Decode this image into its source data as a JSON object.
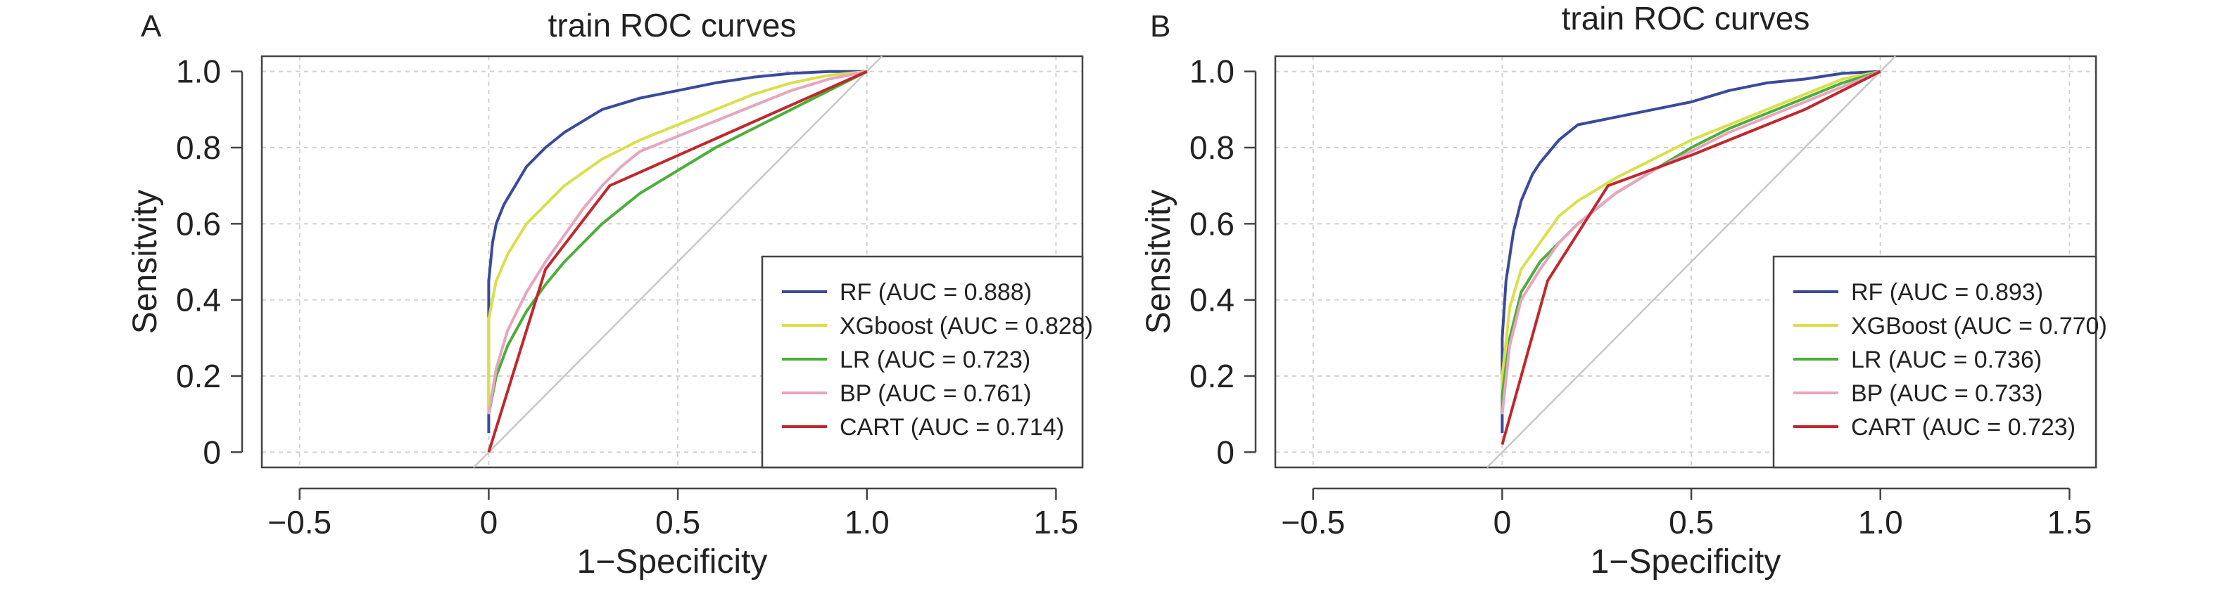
{
  "chart_data": [
    {
      "panel_label": "A",
      "type": "line",
      "title": "train ROC curves",
      "xlabel": "1−Specificity",
      "ylabel": "Sensitvity",
      "xlim": [
        -0.6,
        1.57
      ],
      "ylim": [
        -0.04,
        1.04
      ],
      "x_ticks": [
        "−0.5",
        "0",
        "0.5",
        "1.0",
        "1.5"
      ],
      "x_tick_values": [
        -0.5,
        0,
        0.5,
        1.0,
        1.5
      ],
      "y_ticks": [
        "0",
        "0.2",
        "0.4",
        "0.6",
        "0.8",
        "1.0"
      ],
      "y_tick_values": [
        0,
        0.2,
        0.4,
        0.6,
        0.8,
        1.0
      ],
      "grid": true,
      "legend_position": "bottom-right",
      "series": [
        {
          "name": "RF (AUC = 0.888)",
          "color": "#3a4a9c",
          "x": [
            0,
            0,
            0.01,
            0.02,
            0.04,
            0.07,
            0.1,
            0.15,
            0.2,
            0.25,
            0.3,
            0.4,
            0.5,
            0.6,
            0.7,
            0.8,
            0.9,
            1.0
          ],
          "y": [
            0.05,
            0.45,
            0.55,
            0.6,
            0.65,
            0.7,
            0.75,
            0.8,
            0.84,
            0.87,
            0.9,
            0.93,
            0.95,
            0.97,
            0.985,
            0.995,
            1.0,
            1.0
          ]
        },
        {
          "name": "XGboost (AUC = 0.828)",
          "color": "#d9e04a",
          "x": [
            0,
            0,
            0.02,
            0.05,
            0.1,
            0.15,
            0.2,
            0.3,
            0.4,
            0.5,
            0.6,
            0.7,
            0.8,
            0.9,
            1.0
          ],
          "y": [
            0.1,
            0.35,
            0.45,
            0.52,
            0.6,
            0.65,
            0.7,
            0.77,
            0.82,
            0.86,
            0.9,
            0.94,
            0.97,
            0.99,
            1.0
          ],
          "_note": ""
        },
        {
          "name": "LR (AUC = 0.723)",
          "color": "#4caf3a",
          "x": [
            0,
            0.02,
            0.05,
            0.1,
            0.15,
            0.2,
            0.25,
            0.3,
            0.4,
            0.5,
            0.6,
            0.7,
            0.8,
            0.9,
            1.0
          ],
          "y": [
            0.1,
            0.2,
            0.28,
            0.37,
            0.44,
            0.5,
            0.55,
            0.6,
            0.68,
            0.74,
            0.8,
            0.85,
            0.9,
            0.95,
            1.0
          ]
        },
        {
          "name": "BP (AUC = 0.761)",
          "color": "#e7a5c0",
          "x": [
            0,
            0.02,
            0.05,
            0.1,
            0.15,
            0.2,
            0.25,
            0.3,
            0.35,
            0.4,
            0.5,
            0.6,
            0.7,
            0.8,
            0.9,
            1.0
          ],
          "y": [
            0.1,
            0.22,
            0.32,
            0.42,
            0.5,
            0.57,
            0.64,
            0.7,
            0.75,
            0.79,
            0.83,
            0.87,
            0.91,
            0.95,
            0.98,
            1.0
          ]
        },
        {
          "name": "CART (AUC = 0.714)",
          "color": "#c0282e",
          "x": [
            0,
            0.15,
            0.32,
            1.0
          ],
          "y": [
            0.0,
            0.48,
            0.7,
            1.0
          ]
        }
      ]
    },
    {
      "panel_label": "B",
      "type": "line",
      "title": "train ROC curves",
      "xlabel": "1−Specificity",
      "ylabel": "Sensitvity",
      "xlim": [
        -0.6,
        1.57
      ],
      "ylim": [
        -0.04,
        1.04
      ],
      "x_ticks": [
        "−0.5",
        "0",
        "0.5",
        "1.0",
        "1.5"
      ],
      "x_tick_values": [
        -0.5,
        0,
        0.5,
        1.0,
        1.5
      ],
      "y_ticks": [
        "0",
        "0.2",
        "0.4",
        "0.6",
        "0.8",
        "1.0"
      ],
      "y_tick_values": [
        0,
        0.2,
        0.4,
        0.6,
        0.8,
        1.0
      ],
      "grid": true,
      "legend_position": "bottom-right",
      "series": [
        {
          "name": "RF (AUC = 0.893)",
          "color": "#3a4a9c",
          "x": [
            0,
            0,
            0.01,
            0.03,
            0.05,
            0.08,
            0.1,
            0.15,
            0.2,
            0.3,
            0.4,
            0.5,
            0.6,
            0.7,
            0.8,
            0.9,
            1.0
          ],
          "y": [
            0.05,
            0.3,
            0.45,
            0.58,
            0.66,
            0.73,
            0.76,
            0.82,
            0.86,
            0.88,
            0.9,
            0.92,
            0.95,
            0.97,
            0.98,
            0.995,
            1.0
          ]
        },
        {
          "name": "XGBoost (AUC = 0.770)",
          "color": "#d9e04a",
          "x": [
            0,
            0,
            0.02,
            0.05,
            0.1,
            0.15,
            0.2,
            0.3,
            0.4,
            0.5,
            0.6,
            0.7,
            0.8,
            0.9,
            1.0
          ],
          "y": [
            0.1,
            0.2,
            0.38,
            0.48,
            0.55,
            0.62,
            0.66,
            0.72,
            0.77,
            0.82,
            0.86,
            0.9,
            0.94,
            0.98,
            1.0
          ]
        },
        {
          "name": "LR (AUC = 0.736)",
          "color": "#4caf3a",
          "x": [
            0,
            0,
            0.02,
            0.05,
            0.1,
            0.15,
            0.2,
            0.3,
            0.4,
            0.5,
            0.6,
            0.7,
            0.8,
            0.9,
            1.0
          ],
          "y": [
            0.1,
            0.15,
            0.3,
            0.42,
            0.5,
            0.55,
            0.6,
            0.68,
            0.74,
            0.8,
            0.85,
            0.89,
            0.93,
            0.97,
            1.0
          ]
        },
        {
          "name": "BP (AUC = 0.733)",
          "color": "#e7a5c0",
          "x": [
            0,
            0.02,
            0.05,
            0.1,
            0.15,
            0.2,
            0.3,
            0.4,
            0.5,
            0.6,
            0.7,
            0.8,
            0.9,
            1.0
          ],
          "y": [
            0.1,
            0.28,
            0.4,
            0.48,
            0.55,
            0.6,
            0.68,
            0.74,
            0.79,
            0.84,
            0.88,
            0.92,
            0.96,
            1.0
          ]
        },
        {
          "name": "CART (AUC = 0.723)",
          "color": "#c0282e",
          "x": [
            0,
            0.12,
            0.28,
            0.5,
            0.8,
            0.9,
            1.0
          ],
          "y": [
            0.02,
            0.45,
            0.7,
            0.78,
            0.9,
            0.95,
            1.0
          ]
        }
      ]
    }
  ]
}
